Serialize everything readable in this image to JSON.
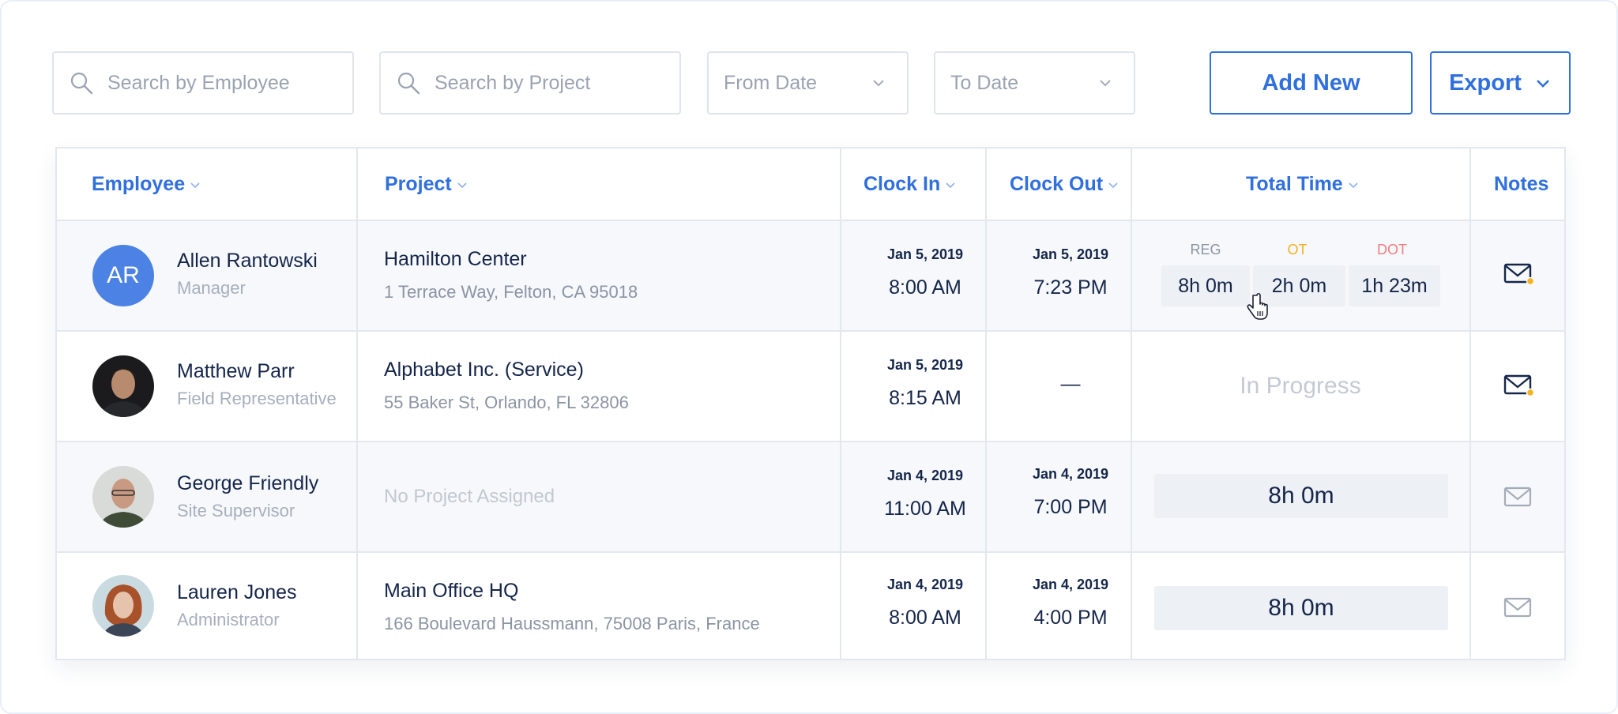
{
  "toolbar": {
    "search_employee_placeholder": "Search by Employee",
    "search_project_placeholder": "Search by Project",
    "from_date": "From Date",
    "to_date": "To Date",
    "add_new_label": "Add New",
    "export_label": "Export"
  },
  "table": {
    "columns": {
      "employee": "Employee",
      "project": "Project",
      "clock_in": "Clock In",
      "clock_out": "Clock Out",
      "total_time": "Total Time",
      "notes": "Notes"
    },
    "time_labels": {
      "reg": "REG",
      "ot": "OT",
      "dot": "DOT"
    },
    "rows": [
      {
        "avatar_initials": "AR",
        "name": "Allen Rantowski",
        "role": "Manager",
        "project_name": "Hamilton Center",
        "project_address": "1 Terrace Way,  Felton, CA 95018",
        "clock_in_date": "Jan 5, 2019",
        "clock_in_time": "8:00 AM",
        "clock_out_date": "Jan 5, 2019",
        "clock_out_time": "7:23 PM",
        "reg": "8h 0m",
        "ot": "2h 0m",
        "dot": "1h 23m",
        "has_note": true
      },
      {
        "name": "Matthew Parr",
        "role": "Field Representative",
        "project_name": "Alphabet Inc. (Service)",
        "project_address": "55 Baker St, Orlando, FL 32806",
        "clock_in_date": "Jan 5, 2019",
        "clock_in_time": "8:15 AM",
        "clock_out_time": "—",
        "status": "In Progress",
        "has_note": true
      },
      {
        "name": "George Friendly",
        "role": "Site Supervisor",
        "project_none": "No Project Assigned",
        "clock_in_date": "Jan 4, 2019",
        "clock_in_time": "11:00 AM",
        "clock_out_date": "Jan 4, 2019",
        "clock_out_time": "7:00 PM",
        "total": "8h 0m",
        "has_note": false
      },
      {
        "name": "Lauren Jones",
        "role": "Administrator",
        "project_name": "Main Office HQ",
        "project_address": "166 Boulevard Haussmann, 75008 Paris, France",
        "clock_in_date": "Jan 4, 2019",
        "clock_in_time": "8:00 AM",
        "clock_out_date": "Jan 4, 2019",
        "clock_out_time": "4:00 PM",
        "total": "8h 0m",
        "has_note": false
      }
    ]
  },
  "colors": {
    "accent": "#2f6fde",
    "reg_label": "#8b94a3",
    "ot_label": "#f2b21b",
    "dot_label": "#f07d7d",
    "note_dot": "#f5b21e",
    "avatar_bg": "#4c82e4"
  },
  "icons": [
    "search-icon",
    "chevron-down-icon",
    "mail-icon",
    "cursor-hand-icon"
  ]
}
